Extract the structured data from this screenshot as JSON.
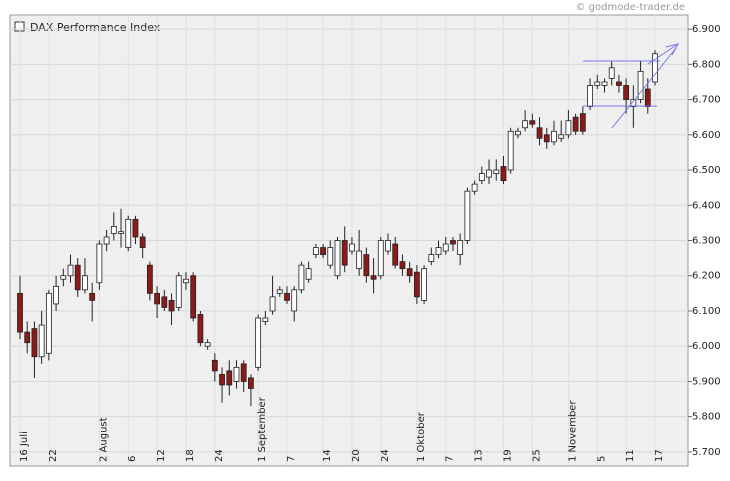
{
  "chart_data": {
    "type": "candlestick",
    "source": "© godmode-trader.de",
    "categories": [
      "16 Juli",
      null,
      null,
      null,
      "22",
      null,
      null,
      null,
      null,
      null,
      null,
      "2 August",
      null,
      null,
      null,
      "6",
      null,
      null,
      null,
      "12",
      null,
      null,
      null,
      "18",
      null,
      null,
      null,
      "24",
      null,
      null,
      null,
      null,
      null,
      "1 September",
      null,
      null,
      null,
      "7",
      null,
      null,
      null,
      null,
      "14",
      null,
      null,
      null,
      "20",
      null,
      null,
      null,
      "24",
      null,
      null,
      null,
      null,
      "1 Oktober",
      null,
      null,
      null,
      "7",
      null,
      null,
      null,
      "13",
      null,
      null,
      null,
      "19",
      null,
      null,
      null,
      "25",
      null,
      null,
      null,
      null,
      "1 November",
      null,
      null,
      null,
      "5",
      null,
      null,
      null,
      "11",
      null,
      null,
      null,
      "17"
    ],
    "series": [
      {
        "name": "DAX Performance Index",
        "up_color": "#ffffff",
        "down_color": "#8b1a1a",
        "open": [
          6150,
          6040,
          6050,
          5970,
          5980,
          6120,
          6190,
          6200,
          6230,
          6160,
          6150,
          6180,
          6290,
          6320,
          6320,
          6280,
          6360,
          6310,
          6230,
          6150,
          6140,
          6130,
          6110,
          6180,
          6200,
          6090,
          6000,
          5960,
          5920,
          5930,
          5900,
          5950,
          5910,
          5940,
          6070,
          6100,
          6150,
          6150,
          6100,
          6160,
          6190,
          6260,
          6280,
          6230,
          6200,
          6300,
          6270,
          6220,
          6260,
          6200,
          6200,
          6270,
          6290,
          6240,
          6220,
          6210,
          6130,
          6240,
          6260,
          6270,
          6300,
          6260,
          6300,
          6440,
          6470,
          6480,
          6490,
          6510,
          6500,
          6600,
          6620,
          6640,
          6620,
          6600,
          6580,
          6590,
          6600,
          6650,
          6660,
          6680,
          6740,
          6740,
          6760,
          6750,
          6740,
          6680,
          6700,
          6730,
          6750
        ],
        "high": [
          6200,
          6070,
          6070,
          6100,
          6160,
          6200,
          6220,
          6260,
          6250,
          6250,
          6180,
          6300,
          6330,
          6380,
          6390,
          6370,
          6370,
          6320,
          6240,
          6170,
          6160,
          6150,
          6210,
          6210,
          6210,
          6100,
          6020,
          5980,
          5940,
          5960,
          5960,
          5960,
          5920,
          6090,
          6100,
          6200,
          6170,
          6170,
          6170,
          6240,
          6240,
          6290,
          6290,
          6300,
          6310,
          6340,
          6310,
          6330,
          6280,
          6250,
          6310,
          6320,
          6310,
          6260,
          6240,
          6230,
          6230,
          6280,
          6300,
          6310,
          6310,
          6320,
          6450,
          6470,
          6510,
          6530,
          6530,
          6540,
          6620,
          6620,
          6670,
          6660,
          6650,
          6620,
          6640,
          6640,
          6670,
          6660,
          6680,
          6760,
          6770,
          6760,
          6810,
          6770,
          6760,
          6740,
          6810,
          6760,
          6840
        ],
        "low": [
          6020,
          5980,
          5910,
          5950,
          5960,
          6100,
          6170,
          6180,
          6140,
          6150,
          6070,
          6160,
          6270,
          6300,
          6280,
          6270,
          6290,
          6250,
          6130,
          6080,
          6100,
          6060,
          6100,
          6160,
          6070,
          6000,
          5990,
          5900,
          5840,
          5860,
          5880,
          5870,
          5830,
          5930,
          6060,
          6090,
          6140,
          6120,
          6070,
          6150,
          6180,
          6250,
          6250,
          6220,
          6190,
          6210,
          6260,
          6200,
          6180,
          6150,
          6190,
          6260,
          6220,
          6200,
          6180,
          6120,
          6120,
          6230,
          6250,
          6260,
          6270,
          6230,
          6290,
          6430,
          6460,
          6460,
          6470,
          6460,
          6490,
          6590,
          6610,
          6620,
          6570,
          6560,
          6570,
          6580,
          6590,
          6600,
          6600,
          6670,
          6730,
          6720,
          6740,
          6720,
          6660,
          6620,
          6690,
          6660,
          6740
        ],
        "close": [
          6040,
          6010,
          5970,
          6060,
          6150,
          6170,
          6200,
          6230,
          6160,
          6200,
          6130,
          6290,
          6310,
          6340,
          6325,
          6360,
          6310,
          6280,
          6150,
          6120,
          6110,
          6100,
          6200,
          6190,
          6080,
          6010,
          6010,
          5930,
          5890,
          5890,
          5940,
          5900,
          5880,
          6080,
          6080,
          6140,
          6160,
          6130,
          6160,
          6230,
          6220,
          6280,
          6260,
          6280,
          6300,
          6230,
          6290,
          6270,
          6200,
          6190,
          6300,
          6300,
          6230,
          6220,
          6200,
          6140,
          6220,
          6260,
          6280,
          6290,
          6290,
          6300,
          6440,
          6460,
          6490,
          6500,
          6500,
          6470,
          6610,
          6610,
          6640,
          6630,
          6590,
          6580,
          6610,
          6600,
          6640,
          6610,
          6610,
          6740,
          6750,
          6750,
          6790,
          6740,
          6700,
          6700,
          6780,
          6680,
          6830
        ]
      }
    ],
    "ylim": [
      5660,
      6940
    ],
    "yticks": [
      {
        "value": 5700,
        "label": "5.700"
      },
      {
        "value": 5800,
        "label": "5.800"
      },
      {
        "value": 5900,
        "label": "5.900"
      },
      {
        "value": 6000,
        "label": "6.000"
      },
      {
        "value": 6100,
        "label": "6.100"
      },
      {
        "value": 6200,
        "label": "6.200"
      },
      {
        "value": 6300,
        "label": "6.300"
      },
      {
        "value": 6400,
        "label": "6.400"
      },
      {
        "value": 6500,
        "label": "6.500"
      },
      {
        "value": 6600,
        "label": "6.600"
      },
      {
        "value": 6700,
        "label": "6.700"
      },
      {
        "value": 6800,
        "label": "6.800"
      },
      {
        "value": 6900,
        "label": "6.900"
      }
    ],
    "grid": true
  }
}
